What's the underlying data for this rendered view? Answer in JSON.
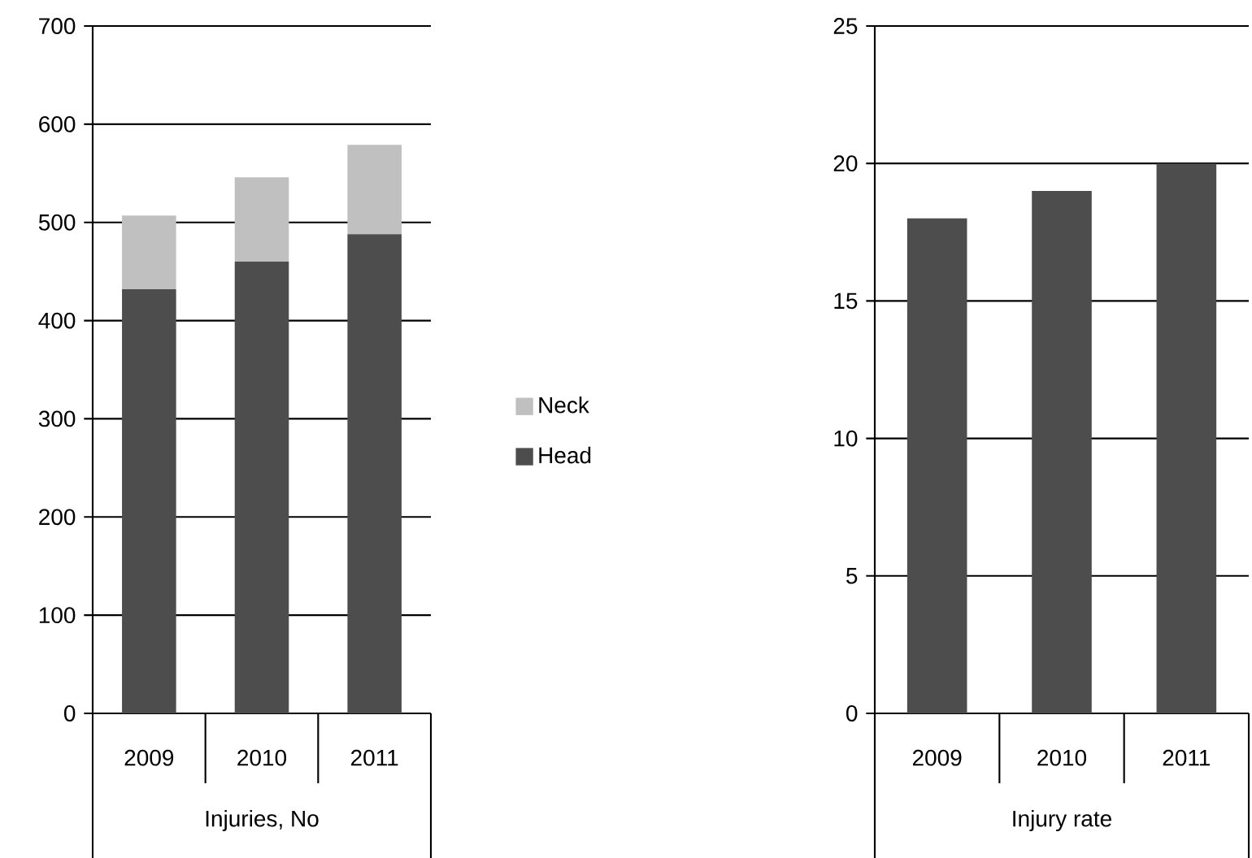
{
  "chart_data": [
    {
      "type": "bar",
      "stacked": true,
      "categories": [
        "2009",
        "2010",
        "2011"
      ],
      "xlabel": "Injuries, No",
      "series": [
        {
          "name": "Head",
          "color": "#4d4d4d",
          "values": [
            432,
            460,
            488
          ]
        },
        {
          "name": "Neck",
          "color": "#c0c0c0",
          "values": [
            75,
            86,
            91
          ]
        }
      ],
      "ylim": [
        0,
        700
      ],
      "yticks": [
        0,
        100,
        200,
        300,
        400,
        500,
        600,
        700
      ],
      "grid": "y",
      "legend": "right"
    },
    {
      "type": "bar",
      "categories": [
        "2009",
        "2010",
        "2011"
      ],
      "xlabel": "Injury rate",
      "values": [
        18,
        19,
        20
      ],
      "color": "#4d4d4d",
      "ylim": [
        0,
        25
      ],
      "yticks": [
        0,
        5,
        10,
        15,
        20,
        25
      ],
      "grid": "y"
    }
  ]
}
